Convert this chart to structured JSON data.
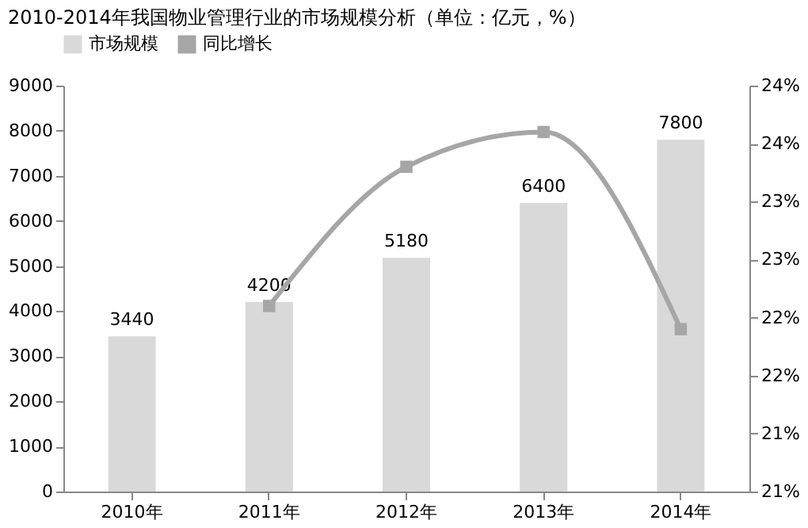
{
  "chart_data": {
    "type": "bar",
    "title": "2010-2014年我国物业管理行业的市场规模分析（单位：亿元，%）",
    "categories": [
      "2010年",
      "2011年",
      "2012年",
      "2013年",
      "2014年"
    ],
    "series": [
      {
        "name": "市场规模",
        "color": "#d9d9d9",
        "values": [
          3440,
          4200,
          5180,
          6400,
          7800
        ],
        "value_labels": [
          "3440",
          "4200",
          "5180",
          "6400",
          "7800"
        ]
      },
      {
        "name": "同比增长",
        "type": "line",
        "axis": "y2",
        "color": "#a6a6a6",
        "marker": "square",
        "values": [
          null,
          22.1,
          23.3,
          23.6,
          21.9
        ]
      }
    ],
    "ylim": [
      0,
      9000
    ],
    "yticks": [
      0,
      1000,
      2000,
      3000,
      4000,
      5000,
      6000,
      7000,
      8000,
      9000
    ],
    "y2lim": [
      20.5,
      24.0
    ],
    "y2ticks": [
      {
        "value": 20.5,
        "label": "21%"
      },
      {
        "value": 21.0,
        "label": "21%"
      },
      {
        "value": 21.5,
        "label": "22%"
      },
      {
        "value": 22.0,
        "label": "22%"
      },
      {
        "value": 22.5,
        "label": "23%"
      },
      {
        "value": 23.0,
        "label": "23%"
      },
      {
        "value": 23.5,
        "label": "24%"
      },
      {
        "value": 24.0,
        "label": "24%"
      }
    ],
    "grid": false,
    "legend": "top"
  }
}
